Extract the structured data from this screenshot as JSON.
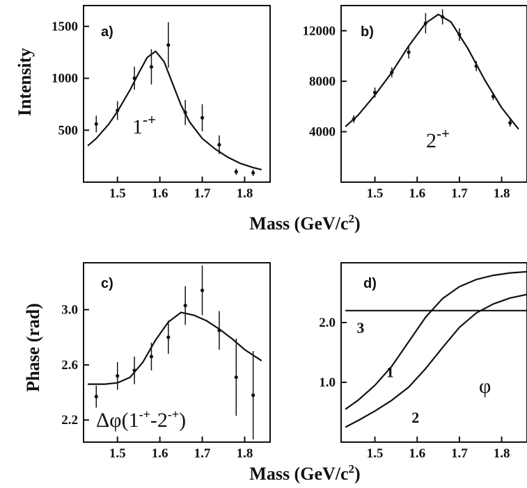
{
  "chart_data": [
    {
      "type": "line",
      "panel_label": "a)",
      "annotation": {
        "base": "1",
        "sup": "-+"
      },
      "ylabel": "Intensity",
      "xlim": [
        1.42,
        1.86
      ],
      "ylim": [
        0,
        1700
      ],
      "xticks": [
        1.5,
        1.6,
        1.7,
        1.8
      ],
      "xtick_labels": [
        "1.5",
        "1.6",
        "1.7",
        "1.8"
      ],
      "yticks": [
        500,
        1000,
        1500
      ],
      "ytick_labels": [
        "500",
        "1000",
        "1500"
      ],
      "points": {
        "x": [
          1.45,
          1.5,
          1.54,
          1.58,
          1.62,
          1.66,
          1.7,
          1.74,
          1.78,
          1.82
        ],
        "y": [
          560,
          690,
          1000,
          1110,
          1320,
          670,
          620,
          360,
          100,
          90
        ],
        "yerr": [
          80,
          90,
          110,
          170,
          220,
          120,
          130,
          90,
          30,
          30
        ]
      },
      "curve": {
        "x": [
          1.43,
          1.45,
          1.48,
          1.5,
          1.53,
          1.55,
          1.57,
          1.59,
          1.61,
          1.63,
          1.65,
          1.67,
          1.7,
          1.73,
          1.76,
          1.79,
          1.82,
          1.84
        ],
        "y": [
          350,
          420,
          560,
          680,
          890,
          1050,
          1200,
          1260,
          1160,
          950,
          740,
          580,
          420,
          320,
          240,
          180,
          140,
          120
        ]
      }
    },
    {
      "type": "line",
      "panel_label": "b)",
      "annotation": {
        "base": "2",
        "sup": "-+"
      },
      "ylabel": "",
      "xlim": [
        1.42,
        1.86
      ],
      "ylim": [
        0,
        14000
      ],
      "xticks": [
        1.5,
        1.6,
        1.7,
        1.8
      ],
      "xtick_labels": [
        "1.5",
        "1.6",
        "1.7",
        "1.8"
      ],
      "yticks": [
        4000,
        8000,
        12000
      ],
      "ytick_labels": [
        "4000",
        "8000",
        "12000"
      ],
      "points": {
        "x": [
          1.45,
          1.5,
          1.54,
          1.58,
          1.62,
          1.66,
          1.7,
          1.74,
          1.78,
          1.82
        ],
        "y": [
          5000,
          7100,
          8700,
          10300,
          12600,
          13100,
          11700,
          9200,
          6800,
          4700
        ],
        "yerr": [
          300,
          400,
          400,
          500,
          800,
          600,
          500,
          400,
          300,
          300
        ]
      },
      "curve": {
        "x": [
          1.43,
          1.46,
          1.5,
          1.54,
          1.58,
          1.62,
          1.65,
          1.68,
          1.72,
          1.76,
          1.8,
          1.84
        ],
        "y": [
          4400,
          5300,
          6900,
          8700,
          10800,
          12600,
          13300,
          12700,
          10600,
          8100,
          5900,
          4200
        ]
      }
    },
    {
      "type": "line",
      "panel_label": "c)",
      "annotation": {
        "prefix": "Δφ(1",
        "sup1": "-+",
        "mid": "-2",
        "sup2": "-+",
        "suffix": ")"
      },
      "ylabel": "Phase (rad)",
      "xlim": [
        1.42,
        1.86
      ],
      "ylim": [
        2.04,
        3.34
      ],
      "xticks": [
        1.5,
        1.6,
        1.7,
        1.8
      ],
      "xtick_labels": [
        "1.5",
        "1.6",
        "1.7",
        "1.8"
      ],
      "yticks": [
        2.2,
        2.6,
        3.0
      ],
      "ytick_labels": [
        "2.2",
        "2.6",
        "3.0"
      ],
      "points": {
        "x": [
          1.45,
          1.5,
          1.54,
          1.58,
          1.62,
          1.66,
          1.7,
          1.74,
          1.78,
          1.82
        ],
        "y": [
          2.37,
          2.52,
          2.56,
          2.66,
          2.8,
          3.03,
          3.14,
          2.85,
          2.51,
          2.38
        ],
        "yerr": [
          0.08,
          0.1,
          0.1,
          0.1,
          0.12,
          0.14,
          0.18,
          0.14,
          0.28,
          0.32
        ]
      },
      "curve": {
        "x": [
          1.43,
          1.47,
          1.5,
          1.53,
          1.56,
          1.59,
          1.62,
          1.65,
          1.68,
          1.71,
          1.74,
          1.77,
          1.8,
          1.84
        ],
        "y": [
          2.46,
          2.46,
          2.47,
          2.51,
          2.62,
          2.78,
          2.91,
          2.98,
          2.96,
          2.92,
          2.86,
          2.79,
          2.71,
          2.63
        ]
      }
    },
    {
      "type": "line",
      "panel_label": "d)",
      "annotation": {
        "text": "φ"
      },
      "ylabel": "",
      "xlim": [
        1.42,
        1.86
      ],
      "ylim": [
        0.0,
        3.0
      ],
      "xticks": [
        1.5,
        1.6,
        1.7,
        1.8
      ],
      "xtick_labels": [
        "1.5",
        "1.6",
        "1.7",
        "1.8"
      ],
      "yticks": [
        1.0,
        2.0
      ],
      "ytick_labels": [
        "1.0",
        "2.0"
      ],
      "series": [
        {
          "label": "1",
          "x": [
            1.43,
            1.46,
            1.5,
            1.54,
            1.58,
            1.62,
            1.66,
            1.7,
            1.74,
            1.78,
            1.82,
            1.86
          ],
          "y": [
            0.55,
            0.7,
            0.95,
            1.27,
            1.68,
            2.09,
            2.4,
            2.6,
            2.72,
            2.79,
            2.83,
            2.85
          ]
        },
        {
          "label": "2",
          "x": [
            1.43,
            1.46,
            1.5,
            1.54,
            1.58,
            1.62,
            1.66,
            1.7,
            1.74,
            1.78,
            1.82,
            1.86
          ],
          "y": [
            0.25,
            0.36,
            0.52,
            0.7,
            0.92,
            1.23,
            1.58,
            1.92,
            2.16,
            2.31,
            2.41,
            2.47
          ]
        },
        {
          "label": "3",
          "x": [
            1.43,
            1.86
          ],
          "y": [
            2.2,
            2.2
          ]
        }
      ]
    }
  ],
  "xlabel": {
    "text": "Mass (GeV/c",
    "sup": "2",
    "close": ")"
  }
}
